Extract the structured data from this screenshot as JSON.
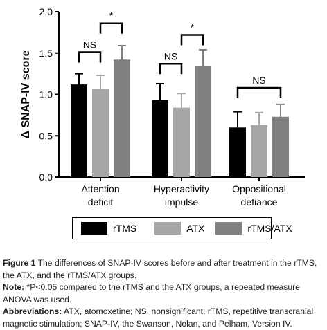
{
  "chart_data": {
    "type": "bar",
    "ylabel": "Δ SNAP-IV score",
    "xlabel": "",
    "ylim": [
      0,
      2.0
    ],
    "yticks": [
      "0.0",
      "0.5",
      "1.0",
      "1.5",
      "2.0"
    ],
    "categories": [
      [
        "Attention",
        "deficit"
      ],
      [
        "Hyperactivity",
        "impulse"
      ],
      [
        "Oppositional",
        "defiance"
      ]
    ],
    "series": [
      {
        "name": "rTMS",
        "color": "#000000",
        "values": [
          1.12,
          0.93,
          0.6
        ],
        "errors": [
          0.13,
          0.2,
          0.19
        ]
      },
      {
        "name": "ATX",
        "color": "#a6a6a6",
        "values": [
          1.07,
          0.84,
          0.63
        ],
        "errors": [
          0.16,
          0.17,
          0.15
        ]
      },
      {
        "name": "rTMS/ATX",
        "color": "#808080",
        "values": [
          1.42,
          1.34,
          0.73
        ],
        "errors": [
          0.17,
          0.2,
          0.15
        ]
      }
    ],
    "annotations": [
      {
        "category": 0,
        "text": "NS",
        "from": 0,
        "to": 1,
        "y": 1.51
      },
      {
        "category": 0,
        "text": "*",
        "from": 1,
        "to": 2,
        "y": 1.86
      },
      {
        "category": 1,
        "text": "NS",
        "from": 0,
        "to": 1,
        "y": 1.37
      },
      {
        "category": 1,
        "text": "*",
        "from": 1,
        "to": 2,
        "y": 1.72
      },
      {
        "category": 2,
        "text": "NS",
        "from": 0,
        "to": 2,
        "y": 1.08
      }
    ],
    "legend_position": "bottom"
  },
  "legend": {
    "items": [
      {
        "label": "rTMS",
        "color": "#000000"
      },
      {
        "label": "ATX",
        "color": "#a6a6a6"
      },
      {
        "label": "rTMS/ATX",
        "color": "#808080"
      }
    ]
  },
  "caption": {
    "figure_label": "Figure 1",
    "figure_text": " The differences of SNAP-IV scores before and after treatment in the rTMS, the ATX, and the rTMS/ATX groups.",
    "note_label": "Note:",
    "note_text": " *P<0.05 compared to the rTMS and the ATX groups, a repeated measure ANOVA was used.",
    "abbr_label": "Abbreviations:",
    "abbr_text": " ATX, atomoxetine; NS, nonsignificant; rTMS, repetitive transcranial magnetic stimulation; SNAP-IV, the Swanson, Nolan, and Pelham, Version IV."
  }
}
